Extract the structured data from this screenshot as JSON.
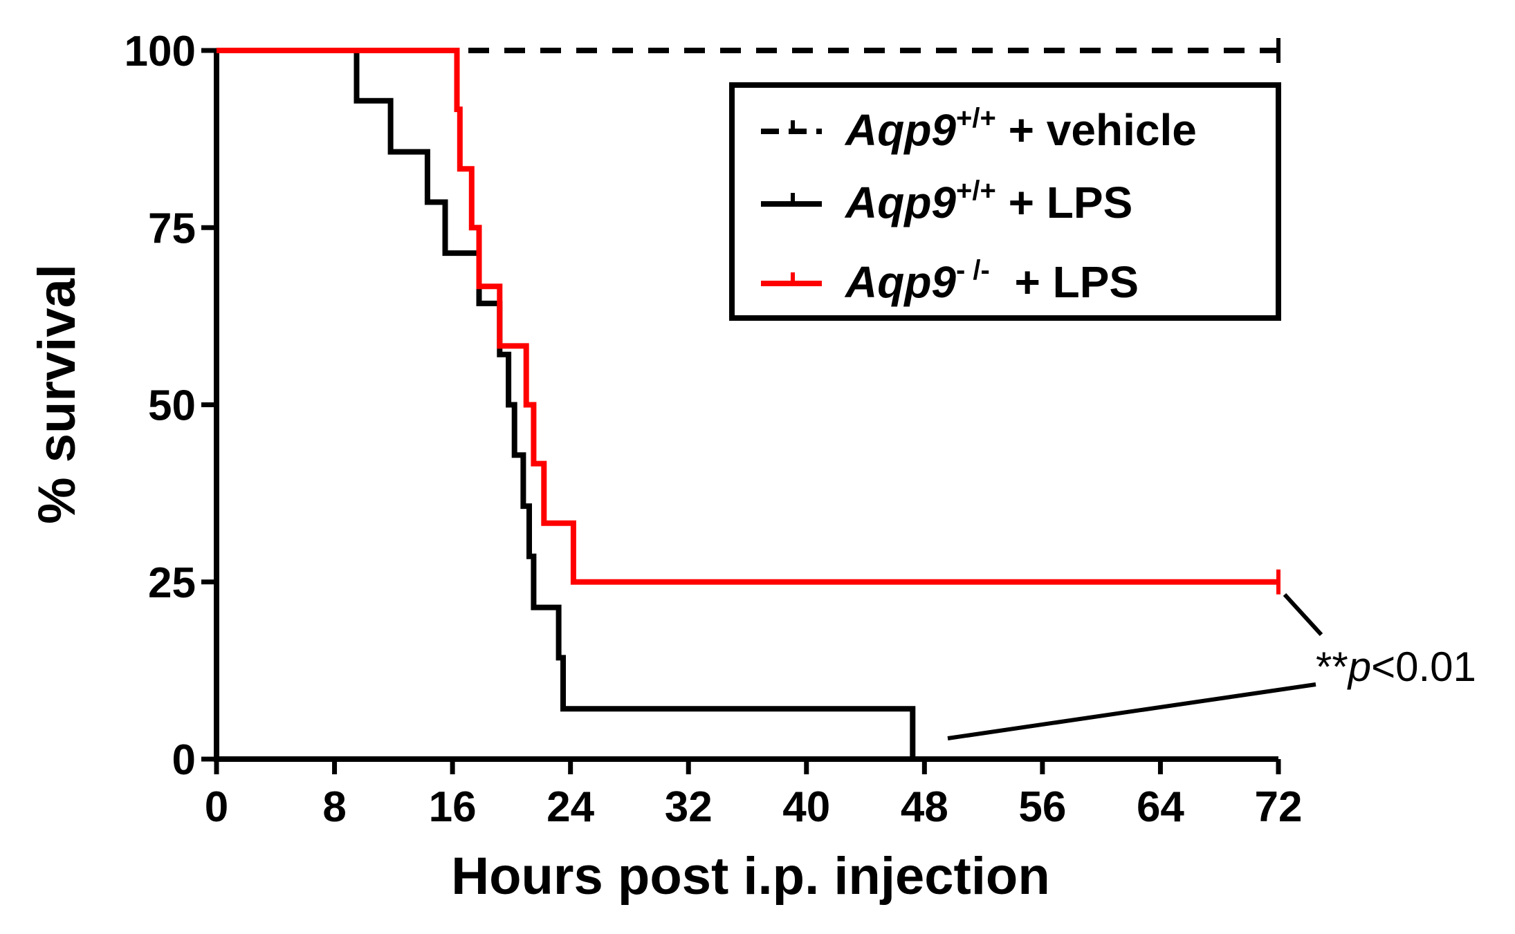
{
  "chart_data": {
    "type": "line",
    "step": true,
    "xlabel": "Hours post i.p. injection",
    "ylabel": "% survival",
    "xlim": [
      0,
      72
    ],
    "ylim": [
      0,
      100
    ],
    "x_ticks": [
      "0",
      "8",
      "16",
      "24",
      "32",
      "40",
      "48",
      "56",
      "64",
      "72"
    ],
    "y_ticks": [
      "0",
      "25",
      "50",
      "75",
      "100"
    ],
    "grid": false,
    "legend_position": "top-right",
    "series": [
      {
        "name_gene": "Aqp9",
        "name_sup": "+/+",
        "name_rest": " + vehicle",
        "color": "#000000",
        "dashed": true,
        "points": [
          [
            0,
            100
          ],
          [
            72,
            100
          ]
        ]
      },
      {
        "name_gene": "Aqp9",
        "name_sup": "+/+",
        "name_rest": " + LPS",
        "color": "#000000",
        "dashed": false,
        "points": [
          [
            0,
            100
          ],
          [
            9.5,
            100
          ],
          [
            9.5,
            92.9
          ],
          [
            11.8,
            92.9
          ],
          [
            11.8,
            85.7
          ],
          [
            14.3,
            85.7
          ],
          [
            14.3,
            78.6
          ],
          [
            15.5,
            78.6
          ],
          [
            15.5,
            71.4
          ],
          [
            17.8,
            71.4
          ],
          [
            17.8,
            64.3
          ],
          [
            19.2,
            64.3
          ],
          [
            19.2,
            57.1
          ],
          [
            19.8,
            57.1
          ],
          [
            19.8,
            50.0
          ],
          [
            20.2,
            50.0
          ],
          [
            20.2,
            42.9
          ],
          [
            20.8,
            42.9
          ],
          [
            20.8,
            35.7
          ],
          [
            21.2,
            35.7
          ],
          [
            21.2,
            28.6
          ],
          [
            21.5,
            28.6
          ],
          [
            21.5,
            21.4
          ],
          [
            23.2,
            21.4
          ],
          [
            23.2,
            14.3
          ],
          [
            23.5,
            14.3
          ],
          [
            23.5,
            7.1
          ],
          [
            47.2,
            7.1
          ],
          [
            47.2,
            0
          ]
        ]
      },
      {
        "name_gene": "Aqp9",
        "name_sup": "- /-",
        "name_rest": "  + LPS",
        "color": "#ff0000",
        "dashed": false,
        "points": [
          [
            0,
            100
          ],
          [
            16.3,
            100
          ],
          [
            16.3,
            91.7
          ],
          [
            16.5,
            91.7
          ],
          [
            16.5,
            83.3
          ],
          [
            17.3,
            83.3
          ],
          [
            17.3,
            75.0
          ],
          [
            17.8,
            75.0
          ],
          [
            17.8,
            66.7
          ],
          [
            19.2,
            66.7
          ],
          [
            19.2,
            58.3
          ],
          [
            21.0,
            58.3
          ],
          [
            21.0,
            50.0
          ],
          [
            21.5,
            50.0
          ],
          [
            21.5,
            41.7
          ],
          [
            22.2,
            41.7
          ],
          [
            22.2,
            33.3
          ],
          [
            24.2,
            33.3
          ],
          [
            24.2,
            25.0
          ],
          [
            72,
            25.0
          ]
        ]
      }
    ],
    "annotation": {
      "stars": "**",
      "p": "p",
      "rest": "<0.01"
    }
  }
}
